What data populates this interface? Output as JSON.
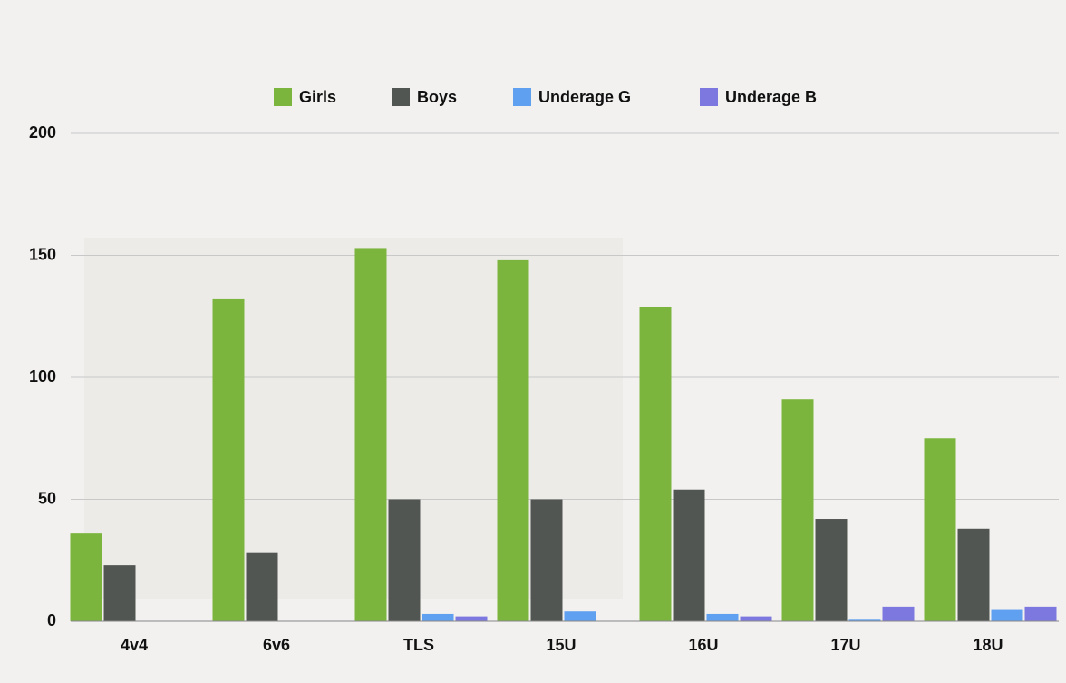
{
  "chart_data": {
    "type": "bar",
    "categories": [
      "4v4",
      "6v6",
      "TLS",
      "15U",
      "16U",
      "17U",
      "18U"
    ],
    "series": [
      {
        "name": "Girls",
        "color": "#7cb53d",
        "values": [
          36,
          132,
          153,
          148,
          129,
          91,
          75
        ]
      },
      {
        "name": "Boys",
        "color": "#525652",
        "values": [
          23,
          28,
          50,
          50,
          54,
          42,
          38
        ]
      },
      {
        "name": "Underage G",
        "color": "#5fa0f0",
        "values": [
          0,
          0,
          3,
          4,
          3,
          1,
          5
        ]
      },
      {
        "name": "Underage B",
        "color": "#7c78e0",
        "values": [
          0,
          0,
          2,
          0,
          2,
          6,
          6
        ]
      }
    ],
    "ylim": [
      0,
      200
    ],
    "yticks": [
      0,
      50,
      100,
      150,
      200
    ],
    "grid": true,
    "legend": "top"
  }
}
